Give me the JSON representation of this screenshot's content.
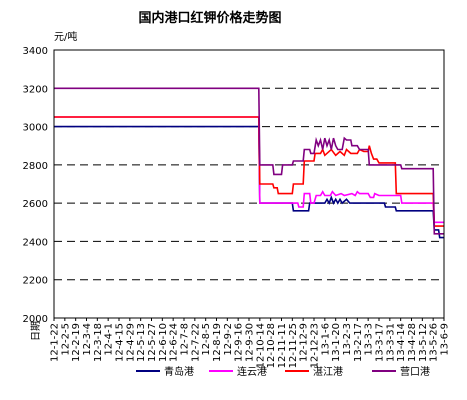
{
  "chart_data": {
    "type": "line",
    "title": "国内港口红钾价格走势图",
    "ylabel": "元/吨",
    "xlabel": "日期",
    "ylim": [
      2000,
      3400
    ],
    "yticks": [
      2000,
      2200,
      2400,
      2600,
      2800,
      3000,
      3200,
      3400
    ],
    "x_tick_labels": [
      "12-1-22",
      "12-2-5",
      "12-2-19",
      "12-3-4",
      "12-3-18",
      "12-4-1",
      "12-4-15",
      "12-4-29",
      "12-5-13",
      "12-5-27",
      "12-6-10",
      "12-6-24",
      "12-7-8",
      "12-7-22",
      "12-8-5",
      "12-8-19",
      "12-9-2",
      "12-9-16",
      "12-9-30",
      "12-10-14",
      "12-10-28",
      "12-11-11",
      "12-11-25",
      "12-12-9",
      "12-12-23",
      "13-1-6",
      "13-1-20",
      "13-2-3",
      "13-2-17",
      "13-3-3",
      "13-3-17",
      "13-3-31",
      "13-4-14",
      "13-4-28",
      "13-5-12",
      "13-5-26",
      "13-6-9"
    ],
    "grid": "horizontal-dashed",
    "legend_position": "bottom",
    "series": [
      {
        "name": "青岛港",
        "color": "#000080",
        "points": [
          [
            0,
            3000
          ],
          [
            18.9,
            3000
          ],
          [
            19.0,
            2600
          ],
          [
            22.0,
            2600
          ],
          [
            22.1,
            2560
          ],
          [
            23.5,
            2560
          ],
          [
            23.6,
            2600
          ],
          [
            25.0,
            2600
          ],
          [
            25.2,
            2620
          ],
          [
            25.4,
            2600
          ],
          [
            25.6,
            2630
          ],
          [
            25.8,
            2600
          ],
          [
            26.0,
            2620
          ],
          [
            26.2,
            2600
          ],
          [
            26.4,
            2620
          ],
          [
            26.6,
            2600
          ],
          [
            27.0,
            2620
          ],
          [
            27.3,
            2600
          ],
          [
            30.5,
            2600
          ],
          [
            30.6,
            2580
          ],
          [
            31.5,
            2580
          ],
          [
            31.6,
            2560
          ],
          [
            35.0,
            2560
          ],
          [
            35.1,
            2460
          ],
          [
            35.5,
            2460
          ],
          [
            35.6,
            2420
          ],
          [
            36,
            2420
          ]
        ]
      },
      {
        "name": "连云港",
        "color": "#FF00FF",
        "points": [
          [
            0,
            3050
          ],
          [
            18.9,
            3050
          ],
          [
            19.0,
            2600
          ],
          [
            22.5,
            2600
          ],
          [
            22.6,
            2580
          ],
          [
            23.0,
            2580
          ],
          [
            23.1,
            2650
          ],
          [
            23.6,
            2650
          ],
          [
            23.7,
            2600
          ],
          [
            24.0,
            2600
          ],
          [
            24.2,
            2640
          ],
          [
            24.6,
            2640
          ],
          [
            24.8,
            2660
          ],
          [
            25.0,
            2640
          ],
          [
            25.5,
            2640
          ],
          [
            25.7,
            2660
          ],
          [
            26.0,
            2640
          ],
          [
            26.5,
            2650
          ],
          [
            26.8,
            2640
          ],
          [
            27.5,
            2650
          ],
          [
            27.8,
            2640
          ],
          [
            28.0,
            2660
          ],
          [
            28.2,
            2650
          ],
          [
            29.0,
            2650
          ],
          [
            29.2,
            2630
          ],
          [
            29.5,
            2630
          ],
          [
            29.6,
            2650
          ],
          [
            30.0,
            2640
          ],
          [
            32.0,
            2640
          ],
          [
            32.1,
            2600
          ],
          [
            35.0,
            2600
          ],
          [
            35.1,
            2500
          ],
          [
            36,
            2500
          ]
        ]
      },
      {
        "name": "湛江港",
        "color": "#FF0000",
        "points": [
          [
            0,
            3050
          ],
          [
            18.9,
            3050
          ],
          [
            19.0,
            2700
          ],
          [
            20.2,
            2700
          ],
          [
            20.3,
            2680
          ],
          [
            20.6,
            2680
          ],
          [
            20.7,
            2650
          ],
          [
            22.0,
            2650
          ],
          [
            22.1,
            2700
          ],
          [
            23.0,
            2700
          ],
          [
            23.1,
            2820
          ],
          [
            24.0,
            2820
          ],
          [
            24.1,
            2860
          ],
          [
            24.6,
            2860
          ],
          [
            24.8,
            2880
          ],
          [
            25.0,
            2850
          ],
          [
            25.6,
            2880
          ],
          [
            26.0,
            2850
          ],
          [
            26.4,
            2870
          ],
          [
            26.8,
            2850
          ],
          [
            27.0,
            2880
          ],
          [
            27.4,
            2860
          ],
          [
            28.0,
            2860
          ],
          [
            28.2,
            2880
          ],
          [
            28.6,
            2870
          ],
          [
            29.0,
            2870
          ],
          [
            29.1,
            2900
          ],
          [
            29.3,
            2860
          ],
          [
            29.5,
            2830
          ],
          [
            29.8,
            2830
          ],
          [
            30.0,
            2810
          ],
          [
            31.5,
            2810
          ],
          [
            31.6,
            2650
          ],
          [
            35.0,
            2650
          ],
          [
            35.1,
            2480
          ],
          [
            36,
            2480
          ]
        ]
      },
      {
        "name": "营口港",
        "color": "#800080",
        "points": [
          [
            0,
            3200
          ],
          [
            18.9,
            3200
          ],
          [
            19.0,
            2800
          ],
          [
            20.2,
            2800
          ],
          [
            20.3,
            2750
          ],
          [
            21.0,
            2750
          ],
          [
            21.1,
            2800
          ],
          [
            22.0,
            2800
          ],
          [
            22.1,
            2820
          ],
          [
            23.0,
            2820
          ],
          [
            23.1,
            2880
          ],
          [
            23.6,
            2880
          ],
          [
            23.7,
            2860
          ],
          [
            24.0,
            2860
          ],
          [
            24.2,
            2930
          ],
          [
            24.4,
            2900
          ],
          [
            24.6,
            2930
          ],
          [
            24.8,
            2880
          ],
          [
            25.0,
            2940
          ],
          [
            25.2,
            2900
          ],
          [
            25.4,
            2930
          ],
          [
            25.6,
            2880
          ],
          [
            25.8,
            2940
          ],
          [
            26.0,
            2900
          ],
          [
            26.2,
            2880
          ],
          [
            26.6,
            2880
          ],
          [
            26.8,
            2940
          ],
          [
            27.0,
            2930
          ],
          [
            27.4,
            2930
          ],
          [
            27.5,
            2900
          ],
          [
            28.0,
            2900
          ],
          [
            28.2,
            2880
          ],
          [
            29.0,
            2880
          ],
          [
            29.1,
            2800
          ],
          [
            32.0,
            2800
          ],
          [
            32.1,
            2780
          ],
          [
            35.0,
            2780
          ],
          [
            35.1,
            2440
          ],
          [
            36,
            2440
          ]
        ]
      }
    ]
  }
}
